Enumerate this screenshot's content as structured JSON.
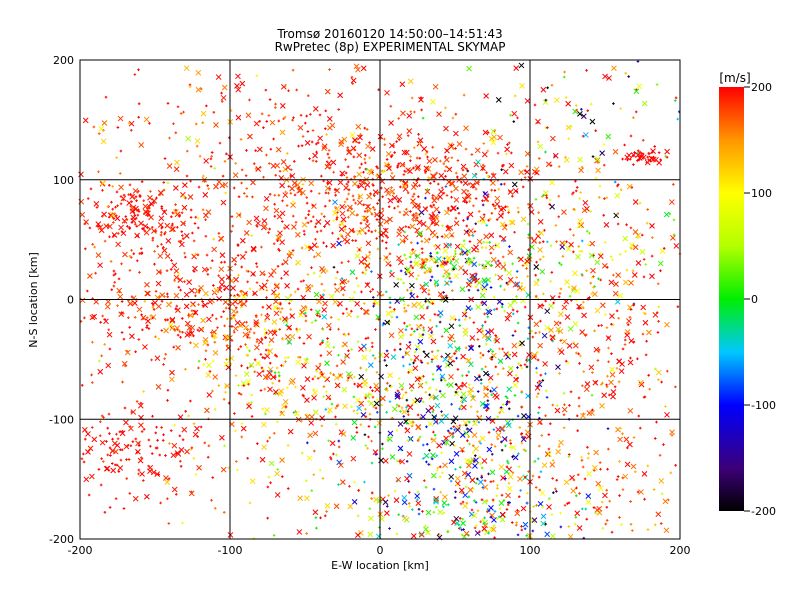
{
  "chart_data": {
    "type": "scatter",
    "title": "Tromsø 20160120 14:50:00–14:51:43",
    "subtitle": "RwPretec (8p) EXPERIMENTAL SKYMAP",
    "xlabel": "E-W location [km]",
    "ylabel": "N-S location [km]",
    "xlim": [
      -200,
      200
    ],
    "ylim": [
      -200,
      200
    ],
    "xticks": [
      "-200",
      "-100",
      "0",
      "100",
      "200"
    ],
    "yticks": [
      "200",
      "100",
      "0",
      "-100",
      "-200"
    ],
    "grid": true,
    "colorbar": {
      "label": "[m/s]",
      "range": [
        -200,
        200
      ],
      "ticks": [
        "200",
        "100",
        "0",
        "-100",
        "-200"
      ],
      "placement": "right"
    },
    "marker_types": [
      "plus",
      "cross"
    ],
    "colors": {
      "v200": "#ff0000",
      "v100": "#ffff00",
      "v0": "#00ee00",
      "v-100": "#0000ff",
      "v-200": "#000000"
    },
    "clusters": [
      {
        "x": 20,
        "y": 85,
        "sx": 50,
        "sy": 30,
        "n": 520,
        "v": 190,
        "sv": 20
      },
      {
        "x": -160,
        "y": 70,
        "sx": 22,
        "sy": 15,
        "n": 160,
        "v": 195,
        "sv": 8
      },
      {
        "x": -135,
        "y": 20,
        "sx": 40,
        "sy": 30,
        "n": 140,
        "v": 190,
        "sv": 15
      },
      {
        "x": -120,
        "y": -15,
        "sx": 45,
        "sy": 20,
        "n": 180,
        "v": 185,
        "sv": 20
      },
      {
        "x": -75,
        "y": -40,
        "sx": 25,
        "sy": 40,
        "n": 160,
        "v": 160,
        "sv": 60
      },
      {
        "x": -170,
        "y": -120,
        "sx": 25,
        "sy": 25,
        "n": 160,
        "v": 195,
        "sv": 10
      },
      {
        "x": -60,
        "y": 110,
        "sx": 70,
        "sy": 50,
        "n": 260,
        "v": 190,
        "sv": 15
      },
      {
        "x": 70,
        "y": -110,
        "sx": 30,
        "sy": 50,
        "n": 180,
        "v": 150,
        "sv": 80
      },
      {
        "x": 50,
        "y": -70,
        "sx": 35,
        "sy": 70,
        "n": 420,
        "v": -80,
        "sv": 100
      },
      {
        "x": 45,
        "y": 25,
        "sx": 25,
        "sy": 15,
        "n": 120,
        "v": 20,
        "sv": 80
      },
      {
        "x": -20,
        "y": -70,
        "sx": 40,
        "sy": 50,
        "n": 240,
        "v": 120,
        "sv": 90
      },
      {
        "x": 130,
        "y": 40,
        "sx": 35,
        "sy": 40,
        "n": 140,
        "v": 120,
        "sv": 90
      },
      {
        "x": 140,
        "y": -40,
        "sx": 40,
        "sy": 50,
        "n": 180,
        "v": 180,
        "sv": 40
      },
      {
        "x": 150,
        "y": -160,
        "sx": 40,
        "sy": 30,
        "n": 110,
        "v": 180,
        "sv": 40
      },
      {
        "x": 175,
        "y": 118,
        "sx": 6,
        "sy": 3,
        "n": 40,
        "v": 200,
        "sv": 3
      },
      {
        "x": 140,
        "y": 150,
        "sx": 40,
        "sy": 40,
        "n": 90,
        "v": 50,
        "sv": 200
      },
      {
        "x": 0,
        "y": 0,
        "sx": 120,
        "sy": 110,
        "n": 900,
        "v": 175,
        "sv": 55
      },
      {
        "x": 60,
        "y": -180,
        "sx": 40,
        "sy": 15,
        "n": 150,
        "v": 60,
        "sv": 120
      }
    ]
  }
}
